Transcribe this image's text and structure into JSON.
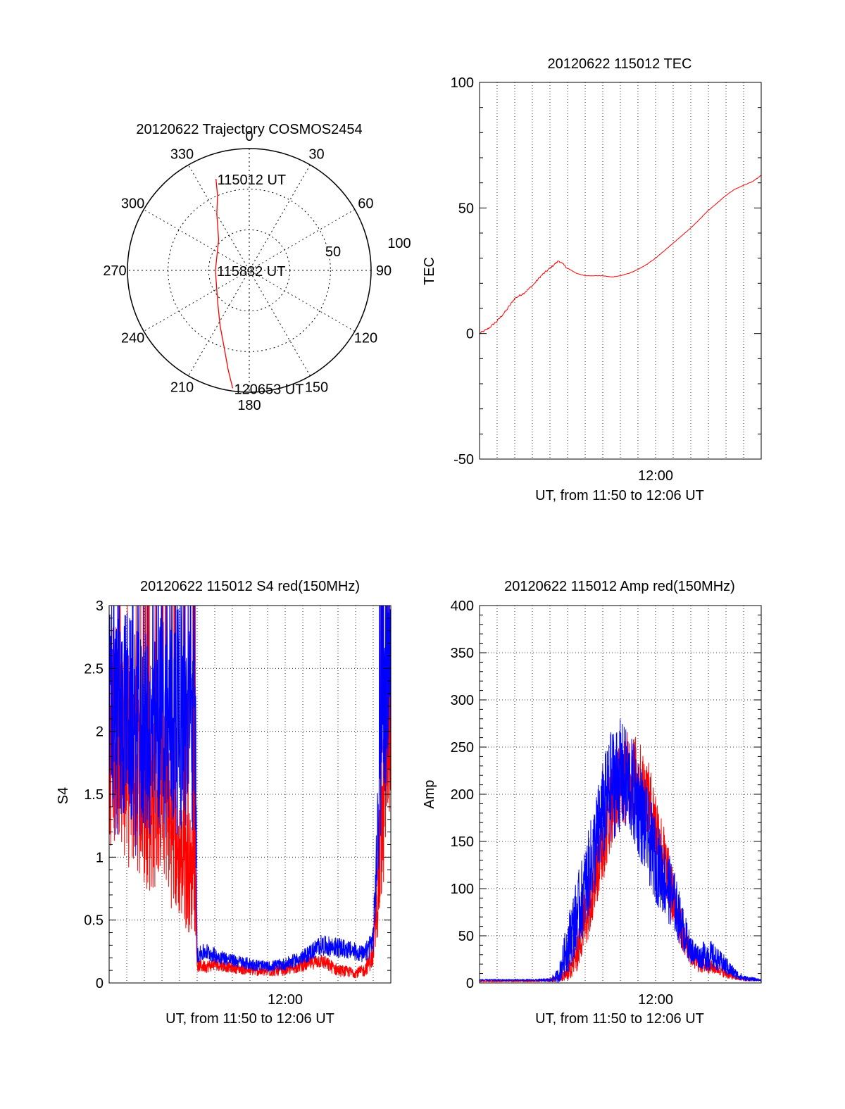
{
  "colors": {
    "red": "#ff0000",
    "blue": "#0000ff",
    "axis": "#000000",
    "grid": "#000000"
  },
  "chart_data": [
    {
      "id": "trajectory",
      "type": "polar",
      "title": "20120622 Trajectory COSMOS2454",
      "angle_labels": [
        "0",
        "30",
        "60",
        "90",
        "120",
        "150",
        "180",
        "210",
        "240",
        "270",
        "300",
        "330"
      ],
      "radial_labels": [
        "50",
        "100"
      ],
      "radial_max": 90,
      "grid": "dotted",
      "series": [
        {
          "color": "red",
          "points": [
            {
              "az": 340,
              "r": 72
            },
            {
              "az": 337,
              "r": 60
            },
            {
              "az": 330,
              "r": 48
            },
            {
              "az": 315,
              "r": 32
            },
            {
              "az": 270,
              "r": 25
            },
            {
              "az": 225,
              "r": 33
            },
            {
              "az": 208,
              "r": 46
            },
            {
              "az": 198,
              "r": 60
            },
            {
              "az": 192,
              "r": 75
            },
            {
              "az": 188,
              "r": 88
            }
          ]
        }
      ],
      "point_labels": [
        {
          "text": "115012 UT",
          "az": 340,
          "r": 72
        },
        {
          "text": "115832 UT",
          "az": 270,
          "r": 25
        },
        {
          "text": "120653 UT",
          "az": 188,
          "r": 88
        }
      ]
    },
    {
      "id": "tec",
      "type": "line",
      "title": "20120622 115012 TEC",
      "xlabel": "UT, from 11:50 to 12:06 UT",
      "ylabel": "TEC",
      "xlim": [
        0,
        16.0
      ],
      "ylim": [
        -50,
        100
      ],
      "xticks": [
        {
          "x": 10.0,
          "label": "12:00"
        }
      ],
      "yticks": [
        "-50",
        "0",
        "50",
        "100"
      ],
      "grid": "vertical dotted lines every minute",
      "series": [
        {
          "color": "red",
          "x": [
            0,
            0.5,
            1.0,
            1.5,
            2.0,
            2.5,
            3.0,
            3.5,
            4.0,
            4.5,
            5.0,
            5.5,
            6.0,
            6.5,
            7.0,
            7.5,
            8.0,
            8.5,
            9.0,
            9.5,
            10.0,
            10.5,
            11.0,
            11.5,
            12.0,
            12.5,
            13.0,
            13.5,
            14.0,
            14.5,
            15.0,
            15.5,
            16.0
          ],
          "y": [
            0,
            2,
            5,
            9,
            14,
            16,
            19,
            23,
            26,
            29,
            26,
            24,
            23,
            23,
            23,
            22.5,
            23,
            24,
            25.5,
            27.5,
            30,
            33,
            36,
            39,
            42,
            45.5,
            49,
            52,
            55,
            57.5,
            59,
            60.5,
            63
          ]
        }
      ]
    },
    {
      "id": "s4",
      "type": "line",
      "title": "20120622 115012 S4 red(150MHz)",
      "xlabel": "UT, from 11:50 to 12:06 UT",
      "ylabel": "S4",
      "xlim": [
        0,
        16.0
      ],
      "ylim": [
        0,
        3
      ],
      "xticks": [
        {
          "x": 10.0,
          "label": "12:00"
        }
      ],
      "yticks": [
        "0",
        "0.5",
        "1",
        "1.5",
        "2",
        "2.5",
        "3"
      ],
      "grid": "dotted",
      "series": [
        {
          "color": "red",
          "x": [
            0,
            0.5,
            1.0,
            1.5,
            2.0,
            2.5,
            3.0,
            3.5,
            4.0,
            4.5,
            4.9,
            5.0,
            5.5,
            6.0,
            7.0,
            8.0,
            9.0,
            10.0,
            11.0,
            12.0,
            13.0,
            14.0,
            14.5,
            15.0,
            15.5,
            16.0
          ],
          "y": [
            1.9,
            2.1,
            1.8,
            1.7,
            1.5,
            1.4,
            1.6,
            1.2,
            1.0,
            0.9,
            0.8,
            0.14,
            0.13,
            0.15,
            0.12,
            0.1,
            0.09,
            0.1,
            0.14,
            0.18,
            0.1,
            0.08,
            0.1,
            0.22,
            1.2,
            2.3
          ],
          "noise": [
            0.9,
            0.9,
            0.9,
            0.8,
            0.8,
            0.7,
            0.7,
            0.6,
            0.5,
            0.5,
            0.4,
            0.05,
            0.05,
            0.05,
            0.04,
            0.04,
            0.04,
            0.04,
            0.05,
            0.06,
            0.05,
            0.04,
            0.05,
            0.1,
            0.6,
            0.8
          ]
        },
        {
          "color": "blue",
          "x": [
            0,
            0.5,
            1.0,
            1.5,
            2.0,
            2.5,
            3.0,
            3.5,
            4.0,
            4.5,
            4.9,
            5.0,
            5.5,
            6.0,
            7.0,
            8.0,
            9.0,
            10.0,
            11.0,
            12.0,
            13.0,
            14.0,
            14.5,
            15.0,
            15.5,
            16.0
          ],
          "y": [
            2.1,
            2.0,
            2.2,
            1.9,
            2.0,
            1.9,
            2.1,
            2.0,
            2.1,
            2.0,
            2.0,
            0.22,
            0.25,
            0.22,
            0.18,
            0.15,
            0.13,
            0.15,
            0.2,
            0.3,
            0.28,
            0.25,
            0.22,
            0.35,
            1.9,
            2.6
          ],
          "noise": [
            0.9,
            0.9,
            0.8,
            0.9,
            0.8,
            0.8,
            0.9,
            0.9,
            0.9,
            0.9,
            0.8,
            0.06,
            0.07,
            0.06,
            0.05,
            0.05,
            0.04,
            0.05,
            0.06,
            0.08,
            0.08,
            0.07,
            0.07,
            0.12,
            0.7,
            0.6
          ]
        }
      ]
    },
    {
      "id": "amp",
      "type": "line",
      "title": "20120622 115012 Amp red(150MHz)",
      "xlabel": "UT, from 11:50 to 12:06 UT",
      "ylabel": "Amp",
      "xlim": [
        0,
        16.0
      ],
      "ylim": [
        0,
        400
      ],
      "xticks": [
        {
          "x": 10.0,
          "label": "12:00"
        }
      ],
      "yticks": [
        "0",
        "50",
        "100",
        "150",
        "200",
        "250",
        "300",
        "350",
        "400"
      ],
      "grid": "dotted",
      "series": [
        {
          "color": "red",
          "x": [
            0,
            1.0,
            2.0,
            3.0,
            4.0,
            4.5,
            5.0,
            5.5,
            6.0,
            6.5,
            7.0,
            7.5,
            8.0,
            8.5,
            9.0,
            9.5,
            10.0,
            10.5,
            11.0,
            11.5,
            12.0,
            12.5,
            13.0,
            13.5,
            14.0,
            14.5,
            15.0,
            16.0
          ],
          "y": [
            2,
            2,
            2,
            2,
            3,
            5,
            10,
            30,
            70,
            110,
            150,
            190,
            210,
            220,
            215,
            200,
            170,
            130,
            90,
            55,
            30,
            20,
            18,
            15,
            10,
            6,
            4,
            3
          ],
          "noise": [
            1,
            1,
            1,
            1,
            2,
            4,
            8,
            20,
            35,
            40,
            45,
            45,
            45,
            50,
            45,
            40,
            40,
            35,
            30,
            20,
            12,
            10,
            8,
            6,
            5,
            3,
            2,
            1
          ]
        },
        {
          "color": "blue",
          "x": [
            0,
            1.0,
            2.0,
            3.0,
            4.0,
            4.5,
            5.0,
            5.5,
            6.0,
            6.5,
            7.0,
            7.5,
            8.0,
            8.5,
            9.0,
            9.5,
            10.0,
            10.5,
            11.0,
            11.5,
            12.0,
            12.5,
            13.0,
            13.5,
            14.0,
            14.5,
            15.0,
            16.0
          ],
          "y": [
            3,
            3,
            3,
            3,
            3,
            8,
            40,
            70,
            100,
            140,
            180,
            210,
            220,
            210,
            190,
            160,
            130,
            110,
            90,
            60,
            35,
            28,
            30,
            25,
            18,
            10,
            5,
            3
          ],
          "noise": [
            1,
            1,
            1,
            1,
            2,
            8,
            30,
            40,
            45,
            50,
            55,
            60,
            60,
            55,
            55,
            50,
            45,
            40,
            35,
            25,
            15,
            12,
            18,
            12,
            10,
            6,
            3,
            1
          ]
        }
      ]
    }
  ]
}
